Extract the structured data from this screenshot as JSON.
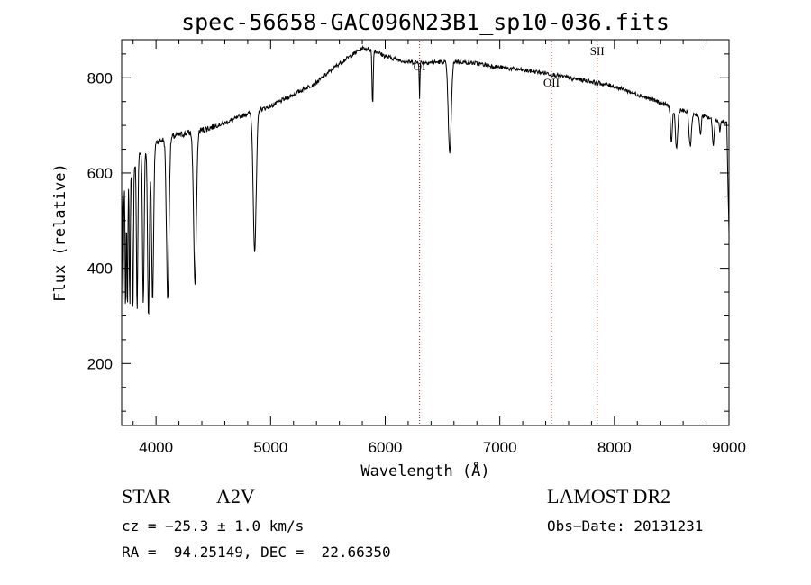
{
  "chart_data": {
    "type": "line",
    "title": "spec-56658-GAC096N23B1_sp10-036.fits",
    "xlabel": "Wavelength (Å)",
    "ylabel": "Flux (relative)",
    "xlim": [
      3700,
      9000
    ],
    "ylim": [
      70,
      880
    ],
    "xticks": [
      4000,
      5000,
      6000,
      7000,
      8000,
      9000
    ],
    "yticks": [
      200,
      400,
      600,
      800
    ],
    "grid": false,
    "continuum": [
      [
        3700,
        560
      ],
      [
        3850,
        640
      ],
      [
        4000,
        665
      ],
      [
        4200,
        680
      ],
      [
        4400,
        690
      ],
      [
        4600,
        705
      ],
      [
        4800,
        725
      ],
      [
        5000,
        740
      ],
      [
        5200,
        765
      ],
      [
        5400,
        790
      ],
      [
        5600,
        830
      ],
      [
        5800,
        862
      ],
      [
        5900,
        858
      ],
      [
        6000,
        845
      ],
      [
        6200,
        833
      ],
      [
        6400,
        832
      ],
      [
        6600,
        835
      ],
      [
        6800,
        830
      ],
      [
        7000,
        822
      ],
      [
        7200,
        816
      ],
      [
        7400,
        810
      ],
      [
        7600,
        800
      ],
      [
        7800,
        792
      ],
      [
        8000,
        782
      ],
      [
        8200,
        765
      ],
      [
        8400,
        748
      ],
      [
        8600,
        730
      ],
      [
        8800,
        718
      ],
      [
        8980,
        705
      ],
      [
        9000,
        470
      ]
    ],
    "absorption": [
      [
        3712,
        320,
        4
      ],
      [
        3734,
        300,
        4
      ],
      [
        3750,
        300,
        4
      ],
      [
        3771,
        310,
        4
      ],
      [
        3798,
        300,
        5
      ],
      [
        3835,
        305,
        6
      ],
      [
        3889,
        325,
        7
      ],
      [
        3934,
        300,
        8
      ],
      [
        3970,
        335,
        9
      ],
      [
        4102,
        335,
        11
      ],
      [
        4340,
        365,
        12
      ],
      [
        4861,
        435,
        13
      ],
      [
        5890,
        745,
        5
      ],
      [
        6300,
        760,
        3
      ],
      [
        6563,
        640,
        13
      ],
      [
        7630,
        790,
        3
      ],
      [
        8498,
        660,
        8
      ],
      [
        8542,
        650,
        10
      ],
      [
        8662,
        655,
        10
      ],
      [
        8750,
        680,
        7
      ],
      [
        8863,
        660,
        8
      ],
      [
        8920,
        690,
        6
      ]
    ],
    "lines": [
      {
        "label": "OI",
        "x": 6300
      },
      {
        "label": "OII",
        "x": 7450
      },
      {
        "label": "SII",
        "x": 7850
      }
    ]
  },
  "info": {
    "object_type": "STAR",
    "subclass": "A2V",
    "survey": "LAMOST DR2",
    "cz": "cz = −25.3 ± 1.0 km/s",
    "obs_date": "Obs−Date: 20131231",
    "coords": "RA =  94.25149, DEC =  22.66350"
  },
  "colors": {
    "spectrum": "#000000",
    "line_marker": "#a02020"
  }
}
